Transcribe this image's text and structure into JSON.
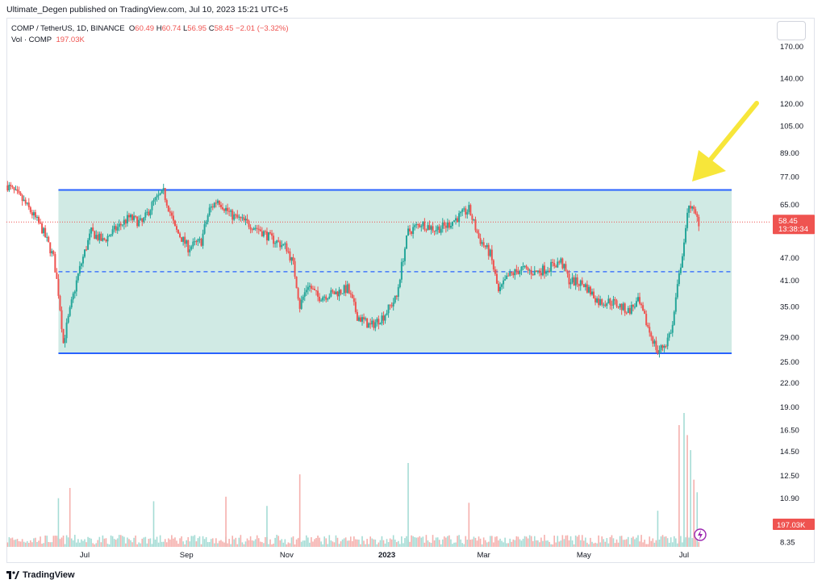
{
  "publisher_line": "Ultimate_Degen published on TradingView.com, Jul 10, 2023 15:21 UTC+5",
  "legend": {
    "symbol": "COMP / TetherUS, 1D, BINANCE",
    "o_label": "O",
    "o_value": "60.49",
    "h_label": "H",
    "h_value": "60.74",
    "l_label": "L",
    "l_value": "56.95",
    "c_label": "C",
    "c_value": "58.45",
    "change": "−2.01 (−3.32%)",
    "vol_label": "Vol · COMP",
    "vol_value": "197.03K"
  },
  "watermark": "TradingView",
  "colors": {
    "up": "#26a69a",
    "down": "#ef5350",
    "channel_line": "#2962ff",
    "channel_fill": "#c8e6df",
    "arrow": "#f7e63a",
    "vol_up": "#a5dcd5",
    "vol_down": "#f5b0ad"
  },
  "chart_data": {
    "type": "candlestick",
    "symbol": "COMP / TetherUS",
    "interval": "1D",
    "exchange": "BINANCE",
    "y_scale": "log",
    "y_ticks": [
      "170.00",
      "140.00",
      "120.00",
      "105.00",
      "89.00",
      "77.00",
      "65.00",
      "58.45",
      "47.00",
      "41.00",
      "35.00",
      "29.00",
      "25.00",
      "22.00",
      "19.00",
      "16.50",
      "14.50",
      "12.50",
      "10.90",
      "197.03K",
      "8.35"
    ],
    "y_tick_values": [
      170,
      140,
      120,
      105,
      89,
      77,
      65,
      47,
      41,
      35,
      29,
      25,
      22,
      19,
      16.5,
      14.5,
      12.5,
      10.9,
      8.35
    ],
    "x_ticks": [
      "Jul",
      "Sep",
      "Nov",
      "2023",
      "Mar",
      "May",
      "Jul"
    ],
    "x_tick_dates": [
      "2022-07-01",
      "2022-09-01",
      "2022-11-01",
      "2023-01-01",
      "2023-03-01",
      "2023-05-01",
      "2023-07-01"
    ],
    "last_price": "58.45",
    "countdown": "13:38:34",
    "volume_last": "197.03K",
    "channel": {
      "upper": 71,
      "lower": 26.3,
      "mid": 43.2,
      "start": "2022-06-15",
      "end": "2023-07-30"
    },
    "price_path": [
      [
        "2022-05-15",
        73
      ],
      [
        "2022-05-25",
        66
      ],
      [
        "2022-06-05",
        56
      ],
      [
        "2022-06-12",
        47
      ],
      [
        "2022-06-15",
        38
      ],
      [
        "2022-06-18",
        28
      ],
      [
        "2022-06-22",
        34
      ],
      [
        "2022-06-28",
        44
      ],
      [
        "2022-07-05",
        55
      ],
      [
        "2022-07-12",
        52
      ],
      [
        "2022-07-20",
        56
      ],
      [
        "2022-07-28",
        60
      ],
      [
        "2022-08-05",
        58
      ],
      [
        "2022-08-12",
        66
      ],
      [
        "2022-08-18",
        70
      ],
      [
        "2022-08-25",
        56
      ],
      [
        "2022-09-02",
        50
      ],
      [
        "2022-09-10",
        52
      ],
      [
        "2022-09-15",
        63
      ],
      [
        "2022-09-20",
        67
      ],
      [
        "2022-09-28",
        61
      ],
      [
        "2022-10-08",
        58
      ],
      [
        "2022-10-15",
        56
      ],
      [
        "2022-10-22",
        53
      ],
      [
        "2022-11-01",
        50
      ],
      [
        "2022-11-05",
        45
      ],
      [
        "2022-11-09",
        35
      ],
      [
        "2022-11-14",
        40
      ],
      [
        "2022-11-20",
        37
      ],
      [
        "2022-12-01",
        38
      ],
      [
        "2022-12-08",
        39
      ],
      [
        "2022-12-14",
        33
      ],
      [
        "2022-12-22",
        31
      ],
      [
        "2022-12-30",
        33
      ],
      [
        "2023-01-07",
        37
      ],
      [
        "2023-01-14",
        55
      ],
      [
        "2023-01-22",
        58
      ],
      [
        "2023-01-30",
        56
      ],
      [
        "2023-02-06",
        57
      ],
      [
        "2023-02-13",
        60
      ],
      [
        "2023-02-20",
        63
      ],
      [
        "2023-02-26",
        53
      ],
      [
        "2023-03-05",
        48
      ],
      [
        "2023-03-10",
        38
      ],
      [
        "2023-03-16",
        42
      ],
      [
        "2023-03-24",
        44
      ],
      [
        "2023-04-01",
        43
      ],
      [
        "2023-04-08",
        44
      ],
      [
        "2023-04-17",
        46
      ],
      [
        "2023-04-22",
        41
      ],
      [
        "2023-05-01",
        40
      ],
      [
        "2023-05-10",
        36
      ],
      [
        "2023-05-18",
        36
      ],
      [
        "2023-05-28",
        34
      ],
      [
        "2023-06-03",
        36
      ],
      [
        "2023-06-10",
        30
      ],
      [
        "2023-06-15",
        26.5
      ],
      [
        "2023-06-20",
        28
      ],
      [
        "2023-06-24",
        31
      ],
      [
        "2023-06-28",
        42
      ],
      [
        "2023-07-02",
        55
      ],
      [
        "2023-07-04",
        66
      ],
      [
        "2023-07-06",
        63
      ],
      [
        "2023-07-10",
        58.45
      ]
    ],
    "volume_bars": [
      {
        "date": "2022-06-15",
        "level": 10.9
      },
      {
        "date": "2022-06-22",
        "level": 11.6
      },
      {
        "date": "2022-08-12",
        "level": 10.7
      },
      {
        "date": "2022-09-25",
        "level": 11.0
      },
      {
        "date": "2022-10-20",
        "level": 10.4
      },
      {
        "date": "2022-11-09",
        "level": 12.6
      },
      {
        "date": "2023-01-14",
        "level": 13.5
      },
      {
        "date": "2023-02-20",
        "level": 10.6
      },
      {
        "date": "2023-06-15",
        "level": 10.1
      },
      {
        "date": "2023-06-28",
        "level": 17.0
      },
      {
        "date": "2023-07-01",
        "level": 18.3
      },
      {
        "date": "2023-07-03",
        "level": 16.0
      },
      {
        "date": "2023-07-05",
        "level": 14.6
      },
      {
        "date": "2023-07-07",
        "level": 12.2
      },
      {
        "date": "2023-07-09",
        "level": 11.3
      }
    ]
  }
}
